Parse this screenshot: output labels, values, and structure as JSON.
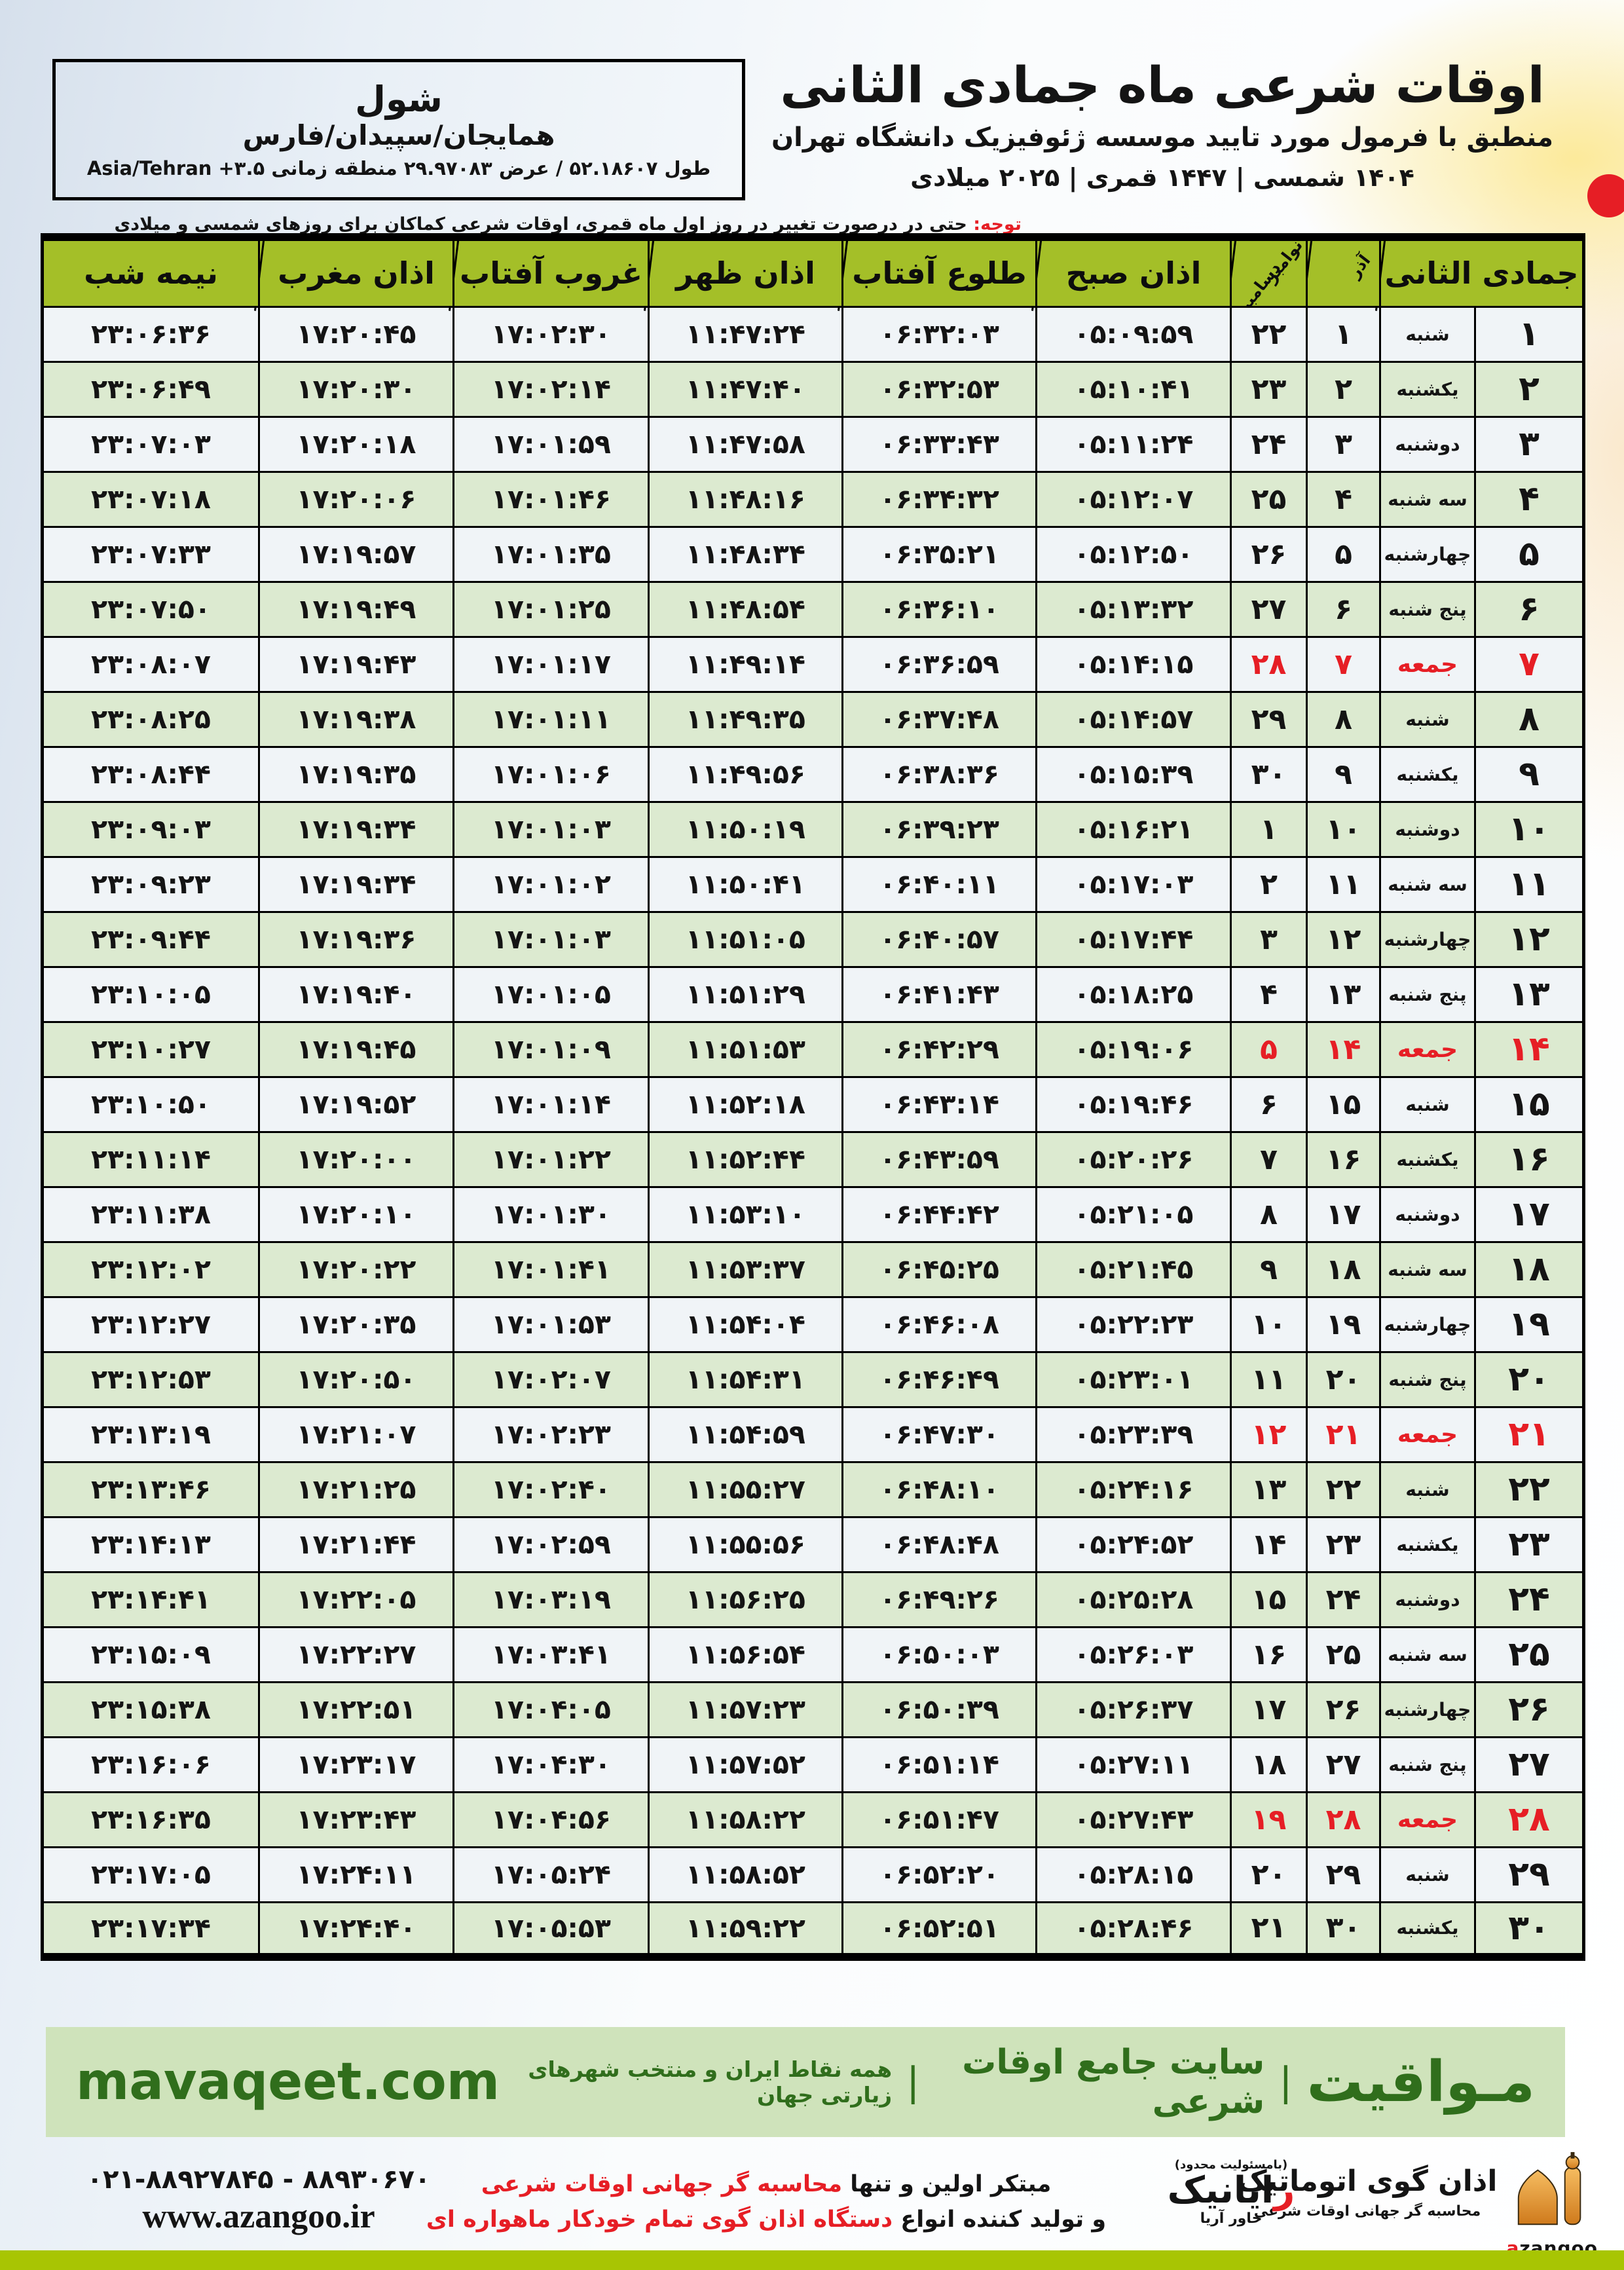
{
  "header": {
    "title": "اوقات شرعی ماه جمادی الثانی",
    "subtitle": "منطبق با فرمول مورد تایید موسسه ژئوفیزیک دانشگاه تهران",
    "dateline": "1404 شمسی | 1447 قمری | 2025 میلادی"
  },
  "location": {
    "city": "شول",
    "region": "همایجان/سپیدان/فارس",
    "coords_rtl": "طول 52.18607 / عرض 29.97083 منطقه زمانی",
    "coords_ltr": "Asia/Tehran +3.5"
  },
  "notice": {
    "label": "توجه:",
    "text": " حتی در درصورت تغییر در روز اول ماه قمری، اوقات شرعی کماکان برای روزهای شمسی و میلادی معتبر است."
  },
  "table": {
    "headers": {
      "month": "جمادی الثانی",
      "azar": "آذر",
      "nov": "نوامبر",
      "dec": "دسامبر",
      "fajr": "اذان صبح",
      "sunrise": "طلوع آفتاب",
      "noon": "اذان ظهر",
      "sunset": "غروب آفتاب",
      "maghrib": "اذان مغرب",
      "midnight": "نیمه شب"
    },
    "rows": [
      {
        "day": 1,
        "weekday": "شنبه",
        "azar": 1,
        "nov_dec": 22,
        "fajr": "05:09:59",
        "sunrise": "06:32:03",
        "noon": "11:47:24",
        "sunset": "17:02:30",
        "maghrib": "17:20:45",
        "midnight": "23:06:36",
        "friday": false
      },
      {
        "day": 2,
        "weekday": "یکشنبه",
        "azar": 2,
        "nov_dec": 23,
        "fajr": "05:10:41",
        "sunrise": "06:32:53",
        "noon": "11:47:40",
        "sunset": "17:02:14",
        "maghrib": "17:20:30",
        "midnight": "23:06:49",
        "friday": false
      },
      {
        "day": 3,
        "weekday": "دوشنبه",
        "azar": 3,
        "nov_dec": 24,
        "fajr": "05:11:24",
        "sunrise": "06:33:43",
        "noon": "11:47:58",
        "sunset": "17:01:59",
        "maghrib": "17:20:18",
        "midnight": "23:07:03",
        "friday": false
      },
      {
        "day": 4,
        "weekday": "سه شنبه",
        "azar": 4,
        "nov_dec": 25,
        "fajr": "05:12:07",
        "sunrise": "06:34:32",
        "noon": "11:48:16",
        "sunset": "17:01:46",
        "maghrib": "17:20:06",
        "midnight": "23:07:18",
        "friday": false
      },
      {
        "day": 5,
        "weekday": "چهارشنبه",
        "azar": 5,
        "nov_dec": 26,
        "fajr": "05:12:50",
        "sunrise": "06:35:21",
        "noon": "11:48:34",
        "sunset": "17:01:35",
        "maghrib": "17:19:57",
        "midnight": "23:07:33",
        "friday": false
      },
      {
        "day": 6,
        "weekday": "پنج شنبه",
        "azar": 6,
        "nov_dec": 27,
        "fajr": "05:13:32",
        "sunrise": "06:36:10",
        "noon": "11:48:54",
        "sunset": "17:01:25",
        "maghrib": "17:19:49",
        "midnight": "23:07:50",
        "friday": false
      },
      {
        "day": 7,
        "weekday": "جمعه",
        "azar": 7,
        "nov_dec": 28,
        "fajr": "05:14:15",
        "sunrise": "06:36:59",
        "noon": "11:49:14",
        "sunset": "17:01:17",
        "maghrib": "17:19:43",
        "midnight": "23:08:07",
        "friday": true
      },
      {
        "day": 8,
        "weekday": "شنبه",
        "azar": 8,
        "nov_dec": 29,
        "fajr": "05:14:57",
        "sunrise": "06:37:48",
        "noon": "11:49:35",
        "sunset": "17:01:11",
        "maghrib": "17:19:38",
        "midnight": "23:08:25",
        "friday": false
      },
      {
        "day": 9,
        "weekday": "یکشنبه",
        "azar": 9,
        "nov_dec": 30,
        "fajr": "05:15:39",
        "sunrise": "06:38:36",
        "noon": "11:49:56",
        "sunset": "17:01:06",
        "maghrib": "17:19:35",
        "midnight": "23:08:44",
        "friday": false
      },
      {
        "day": 10,
        "weekday": "دوشنبه",
        "azar": 10,
        "nov_dec": 1,
        "fajr": "05:16:21",
        "sunrise": "06:39:23",
        "noon": "11:50:19",
        "sunset": "17:01:03",
        "maghrib": "17:19:34",
        "midnight": "23:09:03",
        "friday": false
      },
      {
        "day": 11,
        "weekday": "سه شنبه",
        "azar": 11,
        "nov_dec": 2,
        "fajr": "05:17:03",
        "sunrise": "06:40:11",
        "noon": "11:50:41",
        "sunset": "17:01:02",
        "maghrib": "17:19:34",
        "midnight": "23:09:23",
        "friday": false
      },
      {
        "day": 12,
        "weekday": "چهارشنبه",
        "azar": 12,
        "nov_dec": 3,
        "fajr": "05:17:44",
        "sunrise": "06:40:57",
        "noon": "11:51:05",
        "sunset": "17:01:03",
        "maghrib": "17:19:36",
        "midnight": "23:09:44",
        "friday": false
      },
      {
        "day": 13,
        "weekday": "پنج شنبه",
        "azar": 13,
        "nov_dec": 4,
        "fajr": "05:18:25",
        "sunrise": "06:41:43",
        "noon": "11:51:29",
        "sunset": "17:01:05",
        "maghrib": "17:19:40",
        "midnight": "23:10:05",
        "friday": false
      },
      {
        "day": 14,
        "weekday": "جمعه",
        "azar": 14,
        "nov_dec": 5,
        "fajr": "05:19:06",
        "sunrise": "06:42:29",
        "noon": "11:51:53",
        "sunset": "17:01:09",
        "maghrib": "17:19:45",
        "midnight": "23:10:27",
        "friday": true
      },
      {
        "day": 15,
        "weekday": "شنبه",
        "azar": 15,
        "nov_dec": 6,
        "fajr": "05:19:46",
        "sunrise": "06:43:14",
        "noon": "11:52:18",
        "sunset": "17:01:14",
        "maghrib": "17:19:52",
        "midnight": "23:10:50",
        "friday": false
      },
      {
        "day": 16,
        "weekday": "یکشنبه",
        "azar": 16,
        "nov_dec": 7,
        "fajr": "05:20:26",
        "sunrise": "06:43:59",
        "noon": "11:52:44",
        "sunset": "17:01:22",
        "maghrib": "17:20:00",
        "midnight": "23:11:14",
        "friday": false
      },
      {
        "day": 17,
        "weekday": "دوشنبه",
        "azar": 17,
        "nov_dec": 8,
        "fajr": "05:21:05",
        "sunrise": "06:44:42",
        "noon": "11:53:10",
        "sunset": "17:01:30",
        "maghrib": "17:20:10",
        "midnight": "23:11:38",
        "friday": false
      },
      {
        "day": 18,
        "weekday": "سه شنبه",
        "azar": 18,
        "nov_dec": 9,
        "fajr": "05:21:45",
        "sunrise": "06:45:25",
        "noon": "11:53:37",
        "sunset": "17:01:41",
        "maghrib": "17:20:22",
        "midnight": "23:12:02",
        "friday": false
      },
      {
        "day": 19,
        "weekday": "چهارشنبه",
        "azar": 19,
        "nov_dec": 10,
        "fajr": "05:22:23",
        "sunrise": "06:46:08",
        "noon": "11:54:04",
        "sunset": "17:01:53",
        "maghrib": "17:20:35",
        "midnight": "23:12:27",
        "friday": false
      },
      {
        "day": 20,
        "weekday": "پنج شنبه",
        "azar": 20,
        "nov_dec": 11,
        "fajr": "05:23:01",
        "sunrise": "06:46:49",
        "noon": "11:54:31",
        "sunset": "17:02:07",
        "maghrib": "17:20:50",
        "midnight": "23:12:53",
        "friday": false
      },
      {
        "day": 21,
        "weekday": "جمعه",
        "azar": 21,
        "nov_dec": 12,
        "fajr": "05:23:39",
        "sunrise": "06:47:30",
        "noon": "11:54:59",
        "sunset": "17:02:23",
        "maghrib": "17:21:07",
        "midnight": "23:13:19",
        "friday": true
      },
      {
        "day": 22,
        "weekday": "شنبه",
        "azar": 22,
        "nov_dec": 13,
        "fajr": "05:24:16",
        "sunrise": "06:48:10",
        "noon": "11:55:27",
        "sunset": "17:02:40",
        "maghrib": "17:21:25",
        "midnight": "23:13:46",
        "friday": false
      },
      {
        "day": 23,
        "weekday": "یکشنبه",
        "azar": 23,
        "nov_dec": 14,
        "fajr": "05:24:52",
        "sunrise": "06:48:48",
        "noon": "11:55:56",
        "sunset": "17:02:59",
        "maghrib": "17:21:44",
        "midnight": "23:14:13",
        "friday": false
      },
      {
        "day": 24,
        "weekday": "دوشنبه",
        "azar": 24,
        "nov_dec": 15,
        "fajr": "05:25:28",
        "sunrise": "06:49:26",
        "noon": "11:56:25",
        "sunset": "17:03:19",
        "maghrib": "17:22:05",
        "midnight": "23:14:41",
        "friday": false
      },
      {
        "day": 25,
        "weekday": "سه شنبه",
        "azar": 25,
        "nov_dec": 16,
        "fajr": "05:26:03",
        "sunrise": "06:50:03",
        "noon": "11:56:54",
        "sunset": "17:03:41",
        "maghrib": "17:22:27",
        "midnight": "23:15:09",
        "friday": false
      },
      {
        "day": 26,
        "weekday": "چهارشنبه",
        "azar": 26,
        "nov_dec": 17,
        "fajr": "05:26:37",
        "sunrise": "06:50:39",
        "noon": "11:57:23",
        "sunset": "17:04:05",
        "maghrib": "17:22:51",
        "midnight": "23:15:38",
        "friday": false
      },
      {
        "day": 27,
        "weekday": "پنج شنبه",
        "azar": 27,
        "nov_dec": 18,
        "fajr": "05:27:11",
        "sunrise": "06:51:14",
        "noon": "11:57:52",
        "sunset": "17:04:30",
        "maghrib": "17:23:17",
        "midnight": "23:16:06",
        "friday": false
      },
      {
        "day": 28,
        "weekday": "جمعه",
        "azar": 28,
        "nov_dec": 19,
        "fajr": "05:27:43",
        "sunrise": "06:51:47",
        "noon": "11:58:22",
        "sunset": "17:04:56",
        "maghrib": "17:23:43",
        "midnight": "23:16:35",
        "friday": true
      },
      {
        "day": 29,
        "weekday": "شنبه",
        "azar": 29,
        "nov_dec": 20,
        "fajr": "05:28:15",
        "sunrise": "06:52:20",
        "noon": "11:58:52",
        "sunset": "17:05:24",
        "maghrib": "17:24:11",
        "midnight": "23:17:05",
        "friday": false
      },
      {
        "day": 30,
        "weekday": "یکشنبه",
        "azar": 30,
        "nov_dec": 21,
        "fajr": "05:28:46",
        "sunrise": "06:52:51",
        "noon": "11:59:22",
        "sunset": "17:05:53",
        "maghrib": "17:24:40",
        "midnight": "23:17:34",
        "friday": false
      }
    ]
  },
  "footer": {
    "brand": "مـواقیت",
    "sep": "|",
    "tagline": "سایت جامع اوقات شرعی",
    "coverage": "همه نقاط ایران و منتخب شهرهای زیارتی جهان",
    "site": "mavaqeet.com"
  },
  "bottom": {
    "azangoo": {
      "logotype": "اذان گوی اتوماتیک",
      "sub": "محاسبه گر جهانی اوقات شرعی",
      "latin_a": "a",
      "latin_rest": "zangoo"
    },
    "rayanik": {
      "note": "(بامسئولیت محدود)",
      "name_first": "ر",
      "name_rest": "ایانیک",
      "side": "خاور آریا"
    },
    "desc_line1_black": "مبتکر اولین و تنها ",
    "desc_line1_red": "محاسبه گر جهانی اوقات شرعی",
    "desc_line2_black": "و تولید کننده انواع ",
    "desc_line2_red": "دستگاه اذان گوی تمام خودکار ماهواره ای",
    "phone": "021-88927845 - 88930670",
    "url": "www.azangoo.ir"
  },
  "colors": {
    "header_green": "#a4bf28",
    "row_green": "#dcead0",
    "row_white": "#f0f4f7",
    "accent_red": "#e61e25",
    "footer_bg": "#cfe3bb",
    "footer_text": "#306e1c",
    "lime_bar": "#a8c503",
    "logo_orange": "#e8a33c"
  }
}
